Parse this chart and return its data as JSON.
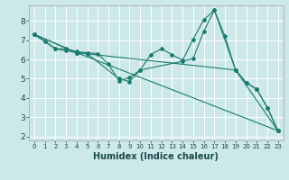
{
  "xlabel": "Humidex (Indice chaleur)",
  "background_color": "#cce8e8",
  "grid_color": "#ffffff",
  "line_color": "#1a7a6e",
  "xlim": [
    -0.5,
    23.5
  ],
  "ylim": [
    1.8,
    8.8
  ],
  "yticks": [
    2,
    3,
    4,
    5,
    6,
    7,
    8
  ],
  "xticks": [
    0,
    1,
    2,
    3,
    4,
    5,
    6,
    7,
    8,
    9,
    10,
    11,
    12,
    13,
    14,
    15,
    16,
    17,
    18,
    19,
    20,
    21,
    22,
    23
  ],
  "lines": [
    {
      "x": [
        0,
        1,
        2,
        3,
        4,
        5,
        6,
        7,
        8,
        9,
        10,
        11,
        12,
        13,
        14,
        15,
        16,
        17,
        18,
        19,
        20,
        21,
        22,
        23
      ],
      "y": [
        7.3,
        6.95,
        6.55,
        6.55,
        6.4,
        6.35,
        6.3,
        5.75,
        4.9,
        5.05,
        5.45,
        6.25,
        6.55,
        6.25,
        5.95,
        7.05,
        8.05,
        8.55,
        7.2,
        5.45,
        4.8,
        4.45,
        3.5,
        2.3
      ]
    },
    {
      "x": [
        0,
        2,
        3,
        4,
        5,
        8,
        9,
        10,
        14,
        15,
        16,
        17,
        19,
        20,
        21,
        22,
        23
      ],
      "y": [
        7.3,
        6.55,
        6.45,
        6.35,
        6.3,
        5.0,
        4.85,
        5.45,
        5.9,
        6.05,
        7.45,
        8.55,
        5.45,
        4.8,
        4.45,
        3.5,
        2.3
      ]
    },
    {
      "x": [
        0,
        4,
        23
      ],
      "y": [
        7.3,
        6.35,
        2.3
      ]
    },
    {
      "x": [
        0,
        4,
        19,
        23
      ],
      "y": [
        7.3,
        6.35,
        5.45,
        2.3
      ]
    }
  ]
}
